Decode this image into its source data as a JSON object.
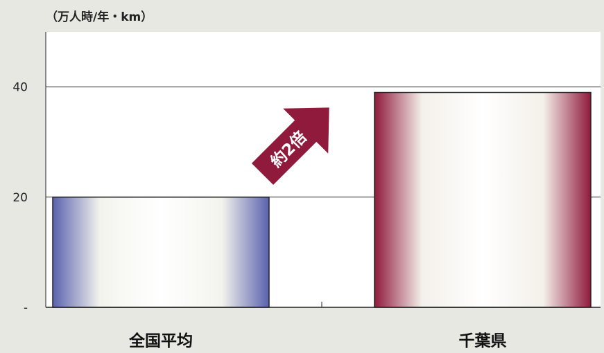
{
  "chart_data": {
    "type": "bar",
    "unit_label": "（万人時/年・km）",
    "categories": [
      "全国平均",
      "千葉県"
    ],
    "values": [
      20,
      39
    ],
    "ylim": [
      0,
      50
    ],
    "yticks": [
      0,
      20,
      40
    ],
    "ytick_labels": [
      "-",
      "20",
      "40"
    ],
    "annotation": "約2倍",
    "grid": true,
    "colors": [
      "#5a62ad",
      "#8f1a3c"
    ],
    "annotation_color": "#8f1a3c"
  }
}
